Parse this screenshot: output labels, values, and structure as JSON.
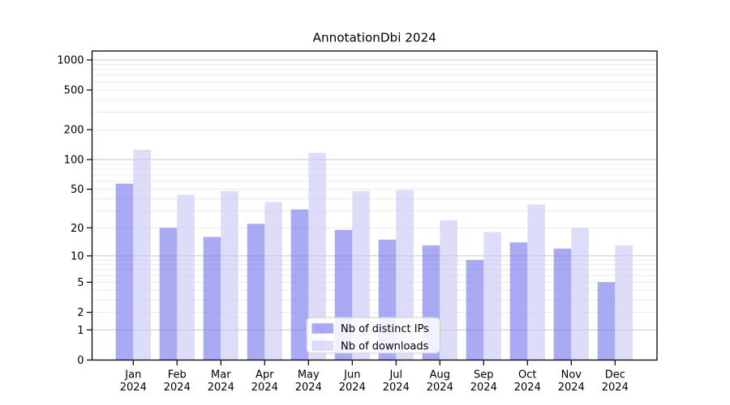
{
  "chart_data": {
    "type": "bar",
    "title": "AnnotationDbi 2024",
    "categories": [
      "Jan",
      "Feb",
      "Mar",
      "Apr",
      "May",
      "Jun",
      "Jul",
      "Aug",
      "Sep",
      "Oct",
      "Nov",
      "Dec"
    ],
    "category_year": "2024",
    "series": [
      {
        "name": "Nb of distinct IPs",
        "color": "rgba(123,123,238,0.65)",
        "values": [
          57,
          20,
          16,
          22,
          31,
          19,
          15,
          13,
          9,
          14,
          12,
          5
        ]
      },
      {
        "name": "Nb of downloads",
        "color": "rgba(203,203,246,0.65)",
        "values": [
          126,
          44,
          48,
          37,
          117,
          48,
          49,
          24,
          18,
          35,
          20,
          13
        ]
      }
    ],
    "yscale": "log1p",
    "yticks": [
      0,
      1,
      2,
      5,
      10,
      20,
      50,
      100,
      200,
      500,
      1000
    ],
    "ylim": [
      0,
      1185
    ],
    "grid": {
      "major_values": [
        1,
        10,
        100,
        1000
      ],
      "minor_decades": [
        1,
        10,
        100
      ],
      "major_color": "#c5c5c5",
      "minor_color": "#eaeaea"
    },
    "legend": {
      "position": "inside-lower-center",
      "bg": "rgba(255,255,255,0.85)",
      "border": "#cccccc"
    },
    "axis_color": "#000000",
    "text_color": "#1a1a1a"
  }
}
